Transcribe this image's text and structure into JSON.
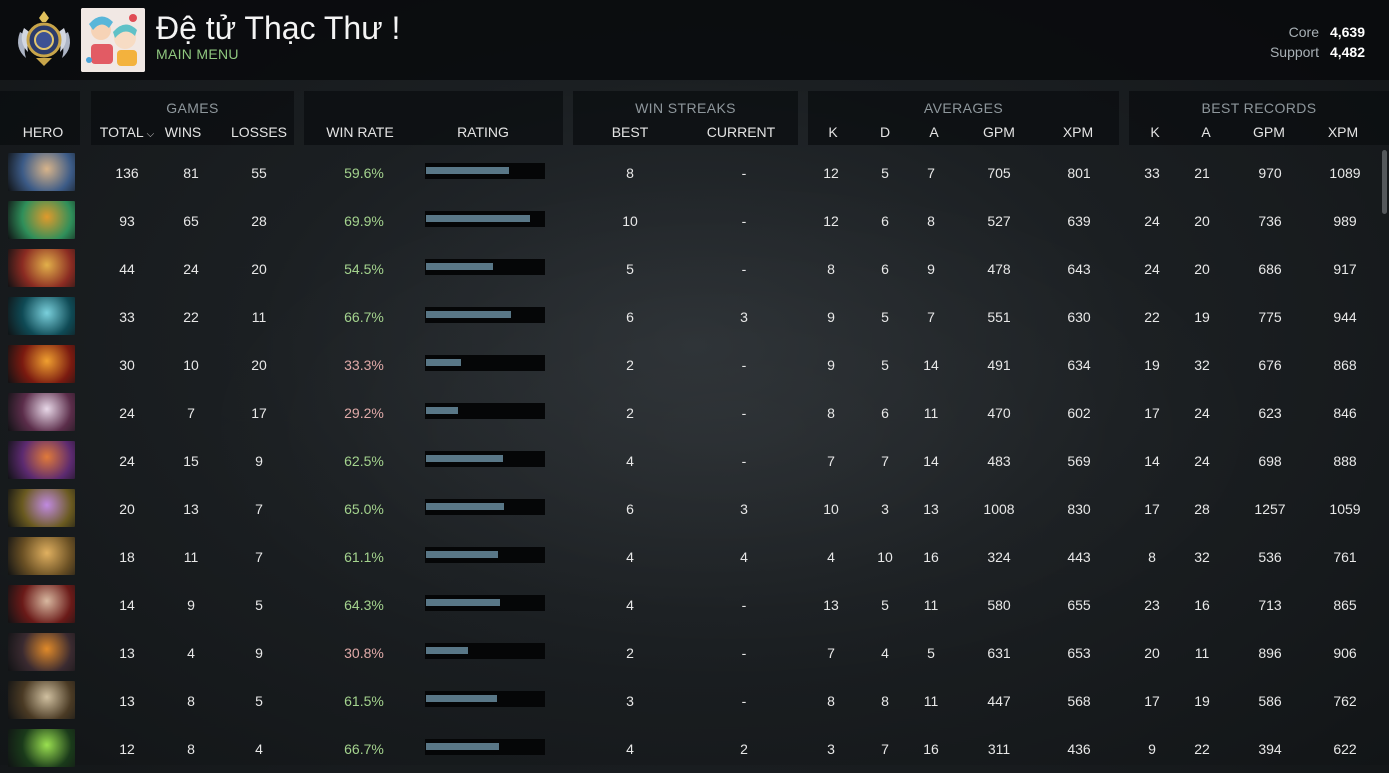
{
  "header": {
    "player_name": "Đệ tử Thạc Thư !",
    "main_menu_label": "MAIN MENU",
    "mmr": [
      {
        "label": "Core",
        "value": "4,639"
      },
      {
        "label": "Support",
        "value": "4,482"
      }
    ]
  },
  "table": {
    "groups": {
      "games": "GAMES",
      "win_streaks": "WIN STREAKS",
      "averages": "AVERAGES",
      "best_records": "BEST RECORDS"
    },
    "columns": {
      "hero": "HERO",
      "total": "TOTAL",
      "wins": "WINS",
      "losses": "LOSSES",
      "win_rate": "WIN RATE",
      "rating": "RATING",
      "best": "BEST",
      "current": "CURRENT",
      "avg_k": "K",
      "avg_d": "D",
      "avg_a": "A",
      "avg_gpm": "GPM",
      "avg_xpm": "XPM",
      "best_k": "K",
      "best_a": "A",
      "best_gpm": "GPM",
      "best_xpm": "XPM"
    },
    "rows": [
      {
        "hero_icon": "meepo-icon",
        "total": "136",
        "wins": "81",
        "losses": "55",
        "win_rate": "59.6%",
        "rating": 0.7,
        "best_streak": "8",
        "current_streak": "-",
        "avg_k": "12",
        "avg_d": "5",
        "avg_a": "7",
        "avg_gpm": "705",
        "avg_xpm": "801",
        "best_k": "33",
        "best_a": "21",
        "best_gpm": "970",
        "best_xpm": "1089"
      },
      {
        "hero_icon": "tidehunter-icon",
        "total": "93",
        "wins": "65",
        "losses": "28",
        "win_rate": "69.9%",
        "rating": 0.88,
        "best_streak": "10",
        "current_streak": "-",
        "avg_k": "12",
        "avg_d": "6",
        "avg_a": "8",
        "avg_gpm": "527",
        "avg_xpm": "639",
        "best_k": "24",
        "best_a": "20",
        "best_gpm": "736",
        "best_xpm": "989"
      },
      {
        "hero_icon": "dragon-knight-icon",
        "total": "44",
        "wins": "24",
        "losses": "20",
        "win_rate": "54.5%",
        "rating": 0.57,
        "best_streak": "5",
        "current_streak": "-",
        "avg_k": "8",
        "avg_d": "6",
        "avg_a": "9",
        "avg_gpm": "478",
        "avg_xpm": "643",
        "best_k": "24",
        "best_a": "20",
        "best_gpm": "686",
        "best_xpm": "917"
      },
      {
        "hero_icon": "phantom-assassin-icon",
        "total": "33",
        "wins": "22",
        "losses": "11",
        "win_rate": "66.7%",
        "rating": 0.72,
        "best_streak": "6",
        "current_streak": "3",
        "avg_k": "9",
        "avg_d": "5",
        "avg_a": "7",
        "avg_gpm": "551",
        "avg_xpm": "630",
        "best_k": "22",
        "best_a": "19",
        "best_gpm": "775",
        "best_xpm": "944"
      },
      {
        "hero_icon": "ember-spirit-icon",
        "total": "30",
        "wins": "10",
        "losses": "20",
        "win_rate": "33.3%",
        "rating": 0.3,
        "best_streak": "2",
        "current_streak": "-",
        "avg_k": "9",
        "avg_d": "5",
        "avg_a": "14",
        "avg_gpm": "491",
        "avg_xpm": "634",
        "best_k": "19",
        "best_a": "32",
        "best_gpm": "676",
        "best_xpm": "868"
      },
      {
        "hero_icon": "invoker-icon",
        "total": "24",
        "wins": "7",
        "losses": "17",
        "win_rate": "29.2%",
        "rating": 0.27,
        "best_streak": "2",
        "current_streak": "-",
        "avg_k": "8",
        "avg_d": "6",
        "avg_a": "11",
        "avg_gpm": "470",
        "avg_xpm": "602",
        "best_k": "17",
        "best_a": "24",
        "best_gpm": "623",
        "best_xpm": "846"
      },
      {
        "hero_icon": "dark-willow-icon",
        "total": "24",
        "wins": "15",
        "losses": "9",
        "win_rate": "62.5%",
        "rating": 0.65,
        "best_streak": "4",
        "current_streak": "-",
        "avg_k": "7",
        "avg_d": "7",
        "avg_a": "14",
        "avg_gpm": "483",
        "avg_xpm": "569",
        "best_k": "14",
        "best_a": "24",
        "best_gpm": "698",
        "best_xpm": "888"
      },
      {
        "hero_icon": "alchemist-icon",
        "total": "20",
        "wins": "13",
        "losses": "7",
        "win_rate": "65.0%",
        "rating": 0.66,
        "best_streak": "6",
        "current_streak": "3",
        "avg_k": "10",
        "avg_d": "3",
        "avg_a": "13",
        "avg_gpm": "1008",
        "avg_xpm": "830",
        "best_k": "17",
        "best_a": "28",
        "best_gpm": "1257",
        "best_xpm": "1059"
      },
      {
        "hero_icon": "clockwerk-icon",
        "total": "18",
        "wins": "11",
        "losses": "7",
        "win_rate": "61.1%",
        "rating": 0.61,
        "best_streak": "4",
        "current_streak": "4",
        "avg_k": "4",
        "avg_d": "10",
        "avg_a": "16",
        "avg_gpm": "324",
        "avg_xpm": "443",
        "best_k": "8",
        "best_a": "32",
        "best_gpm": "536",
        "best_xpm": "761"
      },
      {
        "hero_icon": "bloodseeker-icon",
        "total": "14",
        "wins": "9",
        "losses": "5",
        "win_rate": "64.3%",
        "rating": 0.63,
        "best_streak": "4",
        "current_streak": "-",
        "avg_k": "13",
        "avg_d": "5",
        "avg_a": "11",
        "avg_gpm": "580",
        "avg_xpm": "655",
        "best_k": "23",
        "best_a": "16",
        "best_gpm": "713",
        "best_xpm": "865"
      },
      {
        "hero_icon": "anti-mage-icon",
        "total": "13",
        "wins": "4",
        "losses": "9",
        "win_rate": "30.8%",
        "rating": 0.36,
        "best_streak": "2",
        "current_streak": "-",
        "avg_k": "7",
        "avg_d": "4",
        "avg_a": "5",
        "avg_gpm": "631",
        "avg_xpm": "653",
        "best_k": "20",
        "best_a": "11",
        "best_gpm": "896",
        "best_xpm": "906"
      },
      {
        "hero_icon": "tinker-icon",
        "total": "13",
        "wins": "8",
        "losses": "5",
        "win_rate": "61.5%",
        "rating": 0.6,
        "best_streak": "3",
        "current_streak": "-",
        "avg_k": "8",
        "avg_d": "8",
        "avg_a": "11",
        "avg_gpm": "447",
        "avg_xpm": "568",
        "best_k": "17",
        "best_a": "19",
        "best_gpm": "586",
        "best_xpm": "762"
      },
      {
        "hero_icon": "venomancer-icon",
        "total": "12",
        "wins": "8",
        "losses": "4",
        "win_rate": "66.7%",
        "rating": 0.62,
        "best_streak": "4",
        "current_streak": "2",
        "avg_k": "3",
        "avg_d": "7",
        "avg_a": "16",
        "avg_gpm": "311",
        "avg_xpm": "436",
        "best_k": "9",
        "best_a": "22",
        "best_gpm": "394",
        "best_xpm": "622"
      }
    ]
  }
}
